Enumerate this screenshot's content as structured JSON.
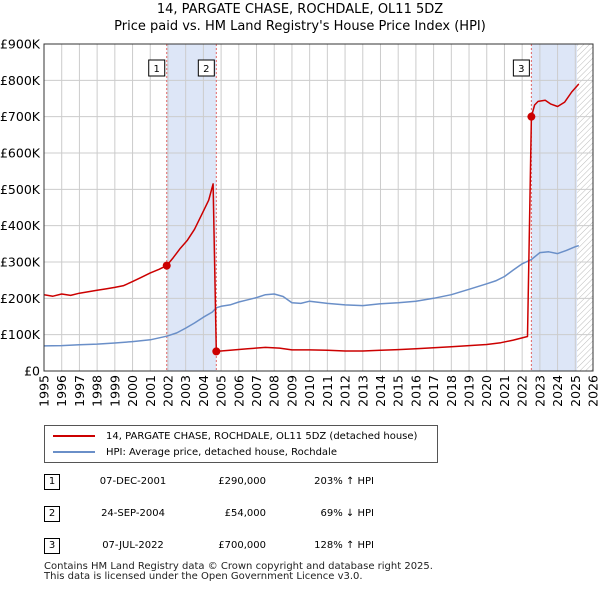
{
  "chart_data": {
    "type": "line",
    "title": "14, PARGATE CHASE, ROCHDALE, OL11 5DZ",
    "subtitle": "Price paid vs. HM Land Registry's House Price Index (HPI)",
    "xlabel": "",
    "ylabel": "",
    "xlim": [
      1995,
      2026
    ],
    "ylim": [
      0,
      900000
    ],
    "x_ticks": [
      "1995",
      "1996",
      "1997",
      "1998",
      "1999",
      "2000",
      "2001",
      "2002",
      "2003",
      "2004",
      "2005",
      "2006",
      "2007",
      "2008",
      "2009",
      "2010",
      "2011",
      "2012",
      "2013",
      "2014",
      "2015",
      "2016",
      "2017",
      "2018",
      "2019",
      "2020",
      "2021",
      "2022",
      "2023",
      "2024",
      "2025",
      "2026"
    ],
    "y_ticks": [
      {
        "value": 0,
        "label": "£0"
      },
      {
        "value": 100000,
        "label": "£100K"
      },
      {
        "value": 200000,
        "label": "£200K"
      },
      {
        "value": 300000,
        "label": "£300K"
      },
      {
        "value": 400000,
        "label": "£400K"
      },
      {
        "value": 500000,
        "label": "£500K"
      },
      {
        "value": 600000,
        "label": "£600K"
      },
      {
        "value": 700000,
        "label": "£700K"
      },
      {
        "value": 800000,
        "label": "£800K"
      },
      {
        "value": 900000,
        "label": "£900K"
      }
    ],
    "grid": true,
    "colors": {
      "property": "#cc0000",
      "hpi": "#6a8fc8",
      "shade": "#dde6f7",
      "grid": "#cccccc",
      "vline": "#e06666"
    },
    "shaded_periods": [
      [
        2001.93,
        2004.73
      ],
      [
        2022.52,
        2025.1
      ]
    ],
    "hatched_period": [
      2025.1,
      2026
    ],
    "series": [
      {
        "name": "14, PARGATE CHASE, ROCHDALE, OL11 5DZ (detached house)",
        "color": "#cc0000",
        "points": [
          [
            1995.0,
            210000
          ],
          [
            1995.5,
            206000
          ],
          [
            1996.0,
            212000
          ],
          [
            1996.5,
            208000
          ],
          [
            1997.0,
            214000
          ],
          [
            1997.5,
            218000
          ],
          [
            1998.0,
            222000
          ],
          [
            1998.5,
            226000
          ],
          [
            1999.0,
            230000
          ],
          [
            1999.5,
            235000
          ],
          [
            2000.0,
            246000
          ],
          [
            2000.5,
            258000
          ],
          [
            2001.0,
            270000
          ],
          [
            2001.5,
            280000
          ],
          [
            2001.93,
            290000
          ],
          [
            2002.3,
            312000
          ],
          [
            2002.7,
            338000
          ],
          [
            2003.1,
            360000
          ],
          [
            2003.5,
            390000
          ],
          [
            2003.9,
            430000
          ],
          [
            2004.3,
            470000
          ],
          [
            2004.55,
            515000
          ],
          [
            2004.73,
            54000
          ],
          [
            2005.5,
            57000
          ],
          [
            2006.5,
            61000
          ],
          [
            2007.5,
            65000
          ],
          [
            2008.3,
            63000
          ],
          [
            2009.0,
            58000
          ],
          [
            2010.0,
            58000
          ],
          [
            2011.0,
            57000
          ],
          [
            2012.0,
            55000
          ],
          [
            2013.0,
            55000
          ],
          [
            2014.0,
            57000
          ],
          [
            2015.0,
            59000
          ],
          [
            2016.0,
            61000
          ],
          [
            2017.0,
            64000
          ],
          [
            2018.0,
            67000
          ],
          [
            2019.0,
            70000
          ],
          [
            2020.0,
            73000
          ],
          [
            2020.8,
            78000
          ],
          [
            2021.5,
            85000
          ],
          [
            2022.3,
            95000
          ],
          [
            2022.52,
            700000
          ],
          [
            2022.7,
            732000
          ],
          [
            2022.9,
            742000
          ],
          [
            2023.3,
            745000
          ],
          [
            2023.6,
            735000
          ],
          [
            2024.0,
            728000
          ],
          [
            2024.4,
            740000
          ],
          [
            2024.8,
            768000
          ],
          [
            2025.2,
            790000
          ]
        ]
      },
      {
        "name": "HPI: Average price, detached house, Rochdale",
        "color": "#6a8fc8",
        "points": [
          [
            1995.0,
            69000
          ],
          [
            1996.0,
            70000
          ],
          [
            1997.0,
            72000
          ],
          [
            1998.0,
            74000
          ],
          [
            1999.0,
            77000
          ],
          [
            2000.0,
            81000
          ],
          [
            2001.0,
            86000
          ],
          [
            2001.93,
            95700
          ],
          [
            2002.5,
            105000
          ],
          [
            2003.0,
            118000
          ],
          [
            2003.5,
            132000
          ],
          [
            2004.0,
            148000
          ],
          [
            2004.5,
            162000
          ],
          [
            2004.73,
            174000
          ],
          [
            2005.0,
            178000
          ],
          [
            2005.5,
            182000
          ],
          [
            2006.0,
            190000
          ],
          [
            2006.5,
            196000
          ],
          [
            2007.0,
            202000
          ],
          [
            2007.5,
            210000
          ],
          [
            2008.0,
            212000
          ],
          [
            2008.5,
            205000
          ],
          [
            2009.0,
            188000
          ],
          [
            2009.5,
            186000
          ],
          [
            2010.0,
            192000
          ],
          [
            2011.0,
            186000
          ],
          [
            2012.0,
            182000
          ],
          [
            2013.0,
            180000
          ],
          [
            2014.0,
            185000
          ],
          [
            2015.0,
            188000
          ],
          [
            2016.0,
            192000
          ],
          [
            2017.0,
            200000
          ],
          [
            2018.0,
            210000
          ],
          [
            2019.0,
            225000
          ],
          [
            2020.0,
            240000
          ],
          [
            2020.5,
            248000
          ],
          [
            2021.0,
            260000
          ],
          [
            2021.5,
            278000
          ],
          [
            2022.0,
            295000
          ],
          [
            2022.52,
            307000
          ],
          [
            2023.0,
            326000
          ],
          [
            2023.5,
            328000
          ],
          [
            2024.0,
            323000
          ],
          [
            2024.5,
            332000
          ],
          [
            2025.0,
            342000
          ],
          [
            2025.2,
            345000
          ]
        ]
      }
    ],
    "sales": [
      {
        "num": "1",
        "x": 2001.93,
        "value": 290000
      },
      {
        "num": "2",
        "x": 2004.73,
        "value": 54000
      },
      {
        "num": "3",
        "x": 2022.52,
        "value": 700000
      }
    ]
  },
  "legend": {
    "property_label": "14, PARGATE CHASE, ROCHDALE, OL11 5DZ (detached house)",
    "hpi_label": "HPI: Average price, detached house, Rochdale"
  },
  "sales_table": [
    {
      "num": "1",
      "date": "07-DEC-2001",
      "price": "£290,000",
      "hpi": "203% ↑ HPI"
    },
    {
      "num": "2",
      "date": "24-SEP-2004",
      "price": "£54,000",
      "hpi": "69% ↓ HPI"
    },
    {
      "num": "3",
      "date": "07-JUL-2022",
      "price": "£700,000",
      "hpi": "128% ↑ HPI"
    }
  ],
  "footer": {
    "line1": "Contains HM Land Registry data © Crown copyright and database right 2025.",
    "line2": "This data is licensed under the Open Government Licence v3.0."
  }
}
